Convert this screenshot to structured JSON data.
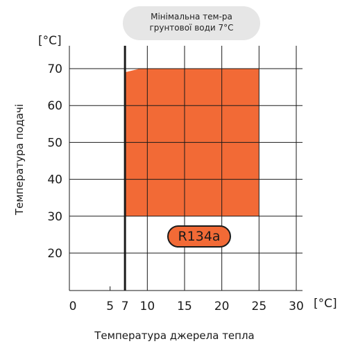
{
  "callout": {
    "line1": "Мінімальна тем-ра",
    "line2": "грунтової води 7°C"
  },
  "axes": {
    "y_unit": "[°C]",
    "x_unit": "[°C]",
    "xlabel": "Температура джерела тепла",
    "ylabel": "Температура подачі"
  },
  "badge_label": "R134a",
  "colors": {
    "region": "#f26a36",
    "grid": "#1a1a1a",
    "min_line": "#1a1a1a"
  },
  "chart_data": {
    "type": "area",
    "title": "",
    "xlabel": "Температура джерела тепла",
    "ylabel": "Температура подачі",
    "xlim": [
      -0.5,
      31
    ],
    "ylim": [
      10,
      77
    ],
    "x_ticks": [
      0,
      5,
      7,
      10,
      15,
      20,
      25,
      30
    ],
    "y_ticks": [
      20,
      30,
      40,
      50,
      60,
      70
    ],
    "x_gridlines": [
      10,
      15,
      20,
      25,
      30
    ],
    "y_gridlines": [
      20,
      30,
      40,
      50,
      60,
      70
    ],
    "min_line_x": 7,
    "region": {
      "name": "R134a",
      "polygon": [
        [
          7,
          30
        ],
        [
          7,
          69
        ],
        [
          9,
          70
        ],
        [
          25,
          70
        ],
        [
          25,
          30
        ]
      ]
    },
    "grid": true
  }
}
